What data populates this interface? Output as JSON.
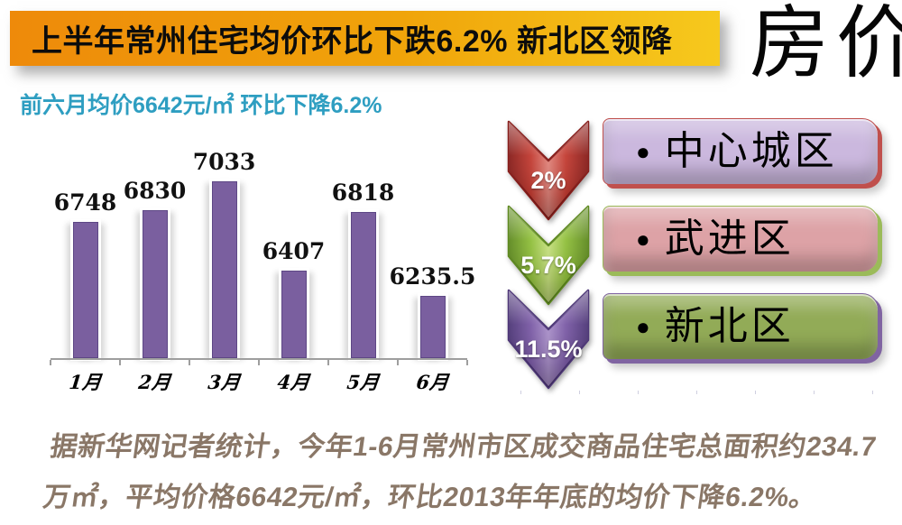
{
  "header": {
    "title": "上半年常州住宅均价环比下跌6.2% 新北区领降",
    "corner_label": "房价",
    "subtitle": "前六月均价6642元/㎡ 环比下降6.2%",
    "banner_colors": {
      "left": "#EE8A0A",
      "right": "#F6C91D"
    },
    "subtitle_color": "#2E9EC1"
  },
  "chart_data": {
    "type": "bar",
    "title": "",
    "categories": [
      "1月",
      "2月",
      "3月",
      "4月",
      "5月",
      "6月"
    ],
    "values": [
      6748,
      6830,
      7033,
      6407,
      6818,
      6235.5
    ],
    "value_labels": [
      "6748",
      "6830",
      "7033",
      "6407",
      "6818",
      "6235.5"
    ],
    "xlabel": "",
    "ylabel": "",
    "ylim": [
      5800,
      7350
    ],
    "grid": false,
    "legend": false,
    "bar_color": "#7A5F9F",
    "axis_color": "#9E9E9E"
  },
  "bullet": "●",
  "regions": [
    {
      "percent": "2%",
      "label": "中心城区",
      "arrow": {
        "light": "#E0837A",
        "mid": "#C23B31",
        "dark": "#871D1A"
      },
      "box": {
        "fill": "#CBB8DE",
        "border": "#C0504D"
      }
    },
    {
      "percent": "5.7%",
      "label": "武进区",
      "arrow": {
        "light": "#C6E07E",
        "mid": "#8FBE3A",
        "dark": "#5E891F"
      },
      "box": {
        "fill": "#DDA2A6",
        "border": "#9BBB59"
      }
    },
    {
      "percent": "11.5%",
      "label": "新北区",
      "arrow": {
        "light": "#A98FC9",
        "mid": "#7A5AA5",
        "dark": "#4D3677"
      },
      "box": {
        "fill": "#92AB57",
        "border": "#8064A2"
      }
    }
  ],
  "footer": {
    "text": "据新华网记者统计，今年1-6月常州市区成交商品住宅总面积约234.7万㎡，平均价格6642元/㎡，环比2013年年底的均价下降6.2%。",
    "color": "#8A7767"
  }
}
